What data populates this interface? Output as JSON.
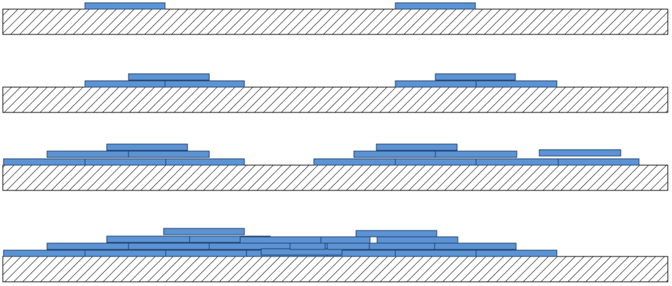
{
  "colors": {
    "background": "#ffffff",
    "flake_fill": "#5b93d4",
    "flake_stroke": "#1f3d66",
    "substrate_stroke": "#000000",
    "hatch": "#000000"
  },
  "diagram": {
    "description_kind": "layer-by-layer flake deposition on hatched substrates",
    "stages": [
      {
        "stage": 1,
        "flake_count": 2
      },
      {
        "stage": 2,
        "flake_count": 6
      },
      {
        "stage": 3,
        "flake_count": 14
      },
      {
        "stage": 4,
        "flake_count": 24
      }
    ]
  }
}
